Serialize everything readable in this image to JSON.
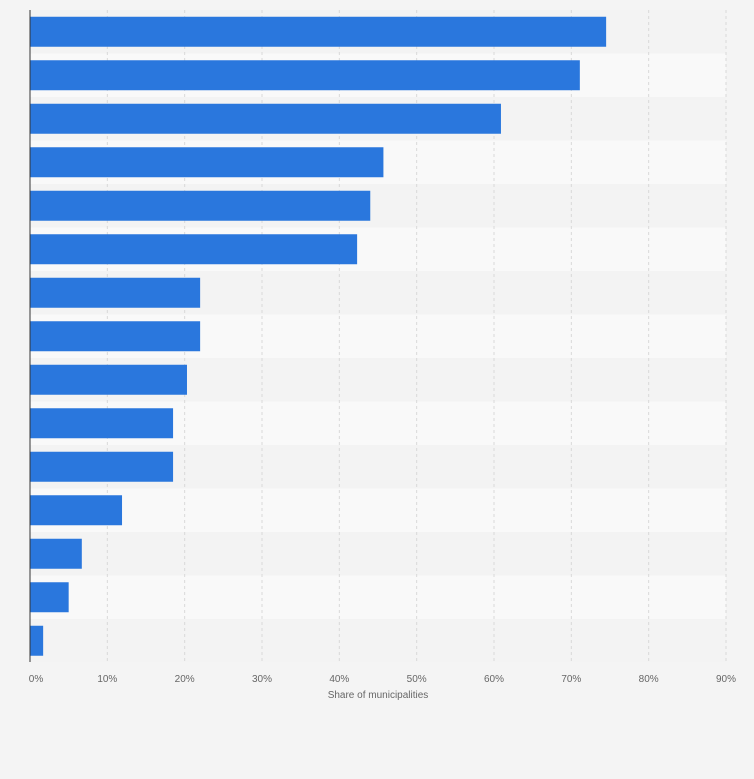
{
  "chart_data": {
    "type": "bar",
    "orientation": "horizontal",
    "categories": [
      "",
      "",
      "",
      "",
      "",
      "",
      "",
      "",
      "",
      "",
      "",
      "",
      "",
      "",
      ""
    ],
    "values": [
      74.5,
      71.1,
      60.9,
      45.7,
      44.0,
      42.3,
      22.0,
      22.0,
      20.3,
      18.5,
      18.5,
      11.9,
      6.7,
      5.0,
      1.7
    ],
    "xlabel": "Share of municipalities",
    "ylabel": "",
    "xlim": [
      0,
      90
    ],
    "x_ticks": [
      0,
      10,
      20,
      30,
      40,
      50,
      60,
      70,
      80,
      90
    ],
    "x_tick_labels": [
      "0%",
      "10%",
      "20%",
      "30%",
      "40%",
      "50%",
      "60%",
      "70%",
      "80%",
      "90%"
    ],
    "grid": true,
    "colors": {
      "bar": "#2a77dd",
      "background": "#f4f4f4",
      "band_light": "#f9f9f9",
      "band_dark": "#f3f3f3",
      "grid": "#d9d9d9",
      "axis": "#333333",
      "text": "#666666"
    }
  }
}
